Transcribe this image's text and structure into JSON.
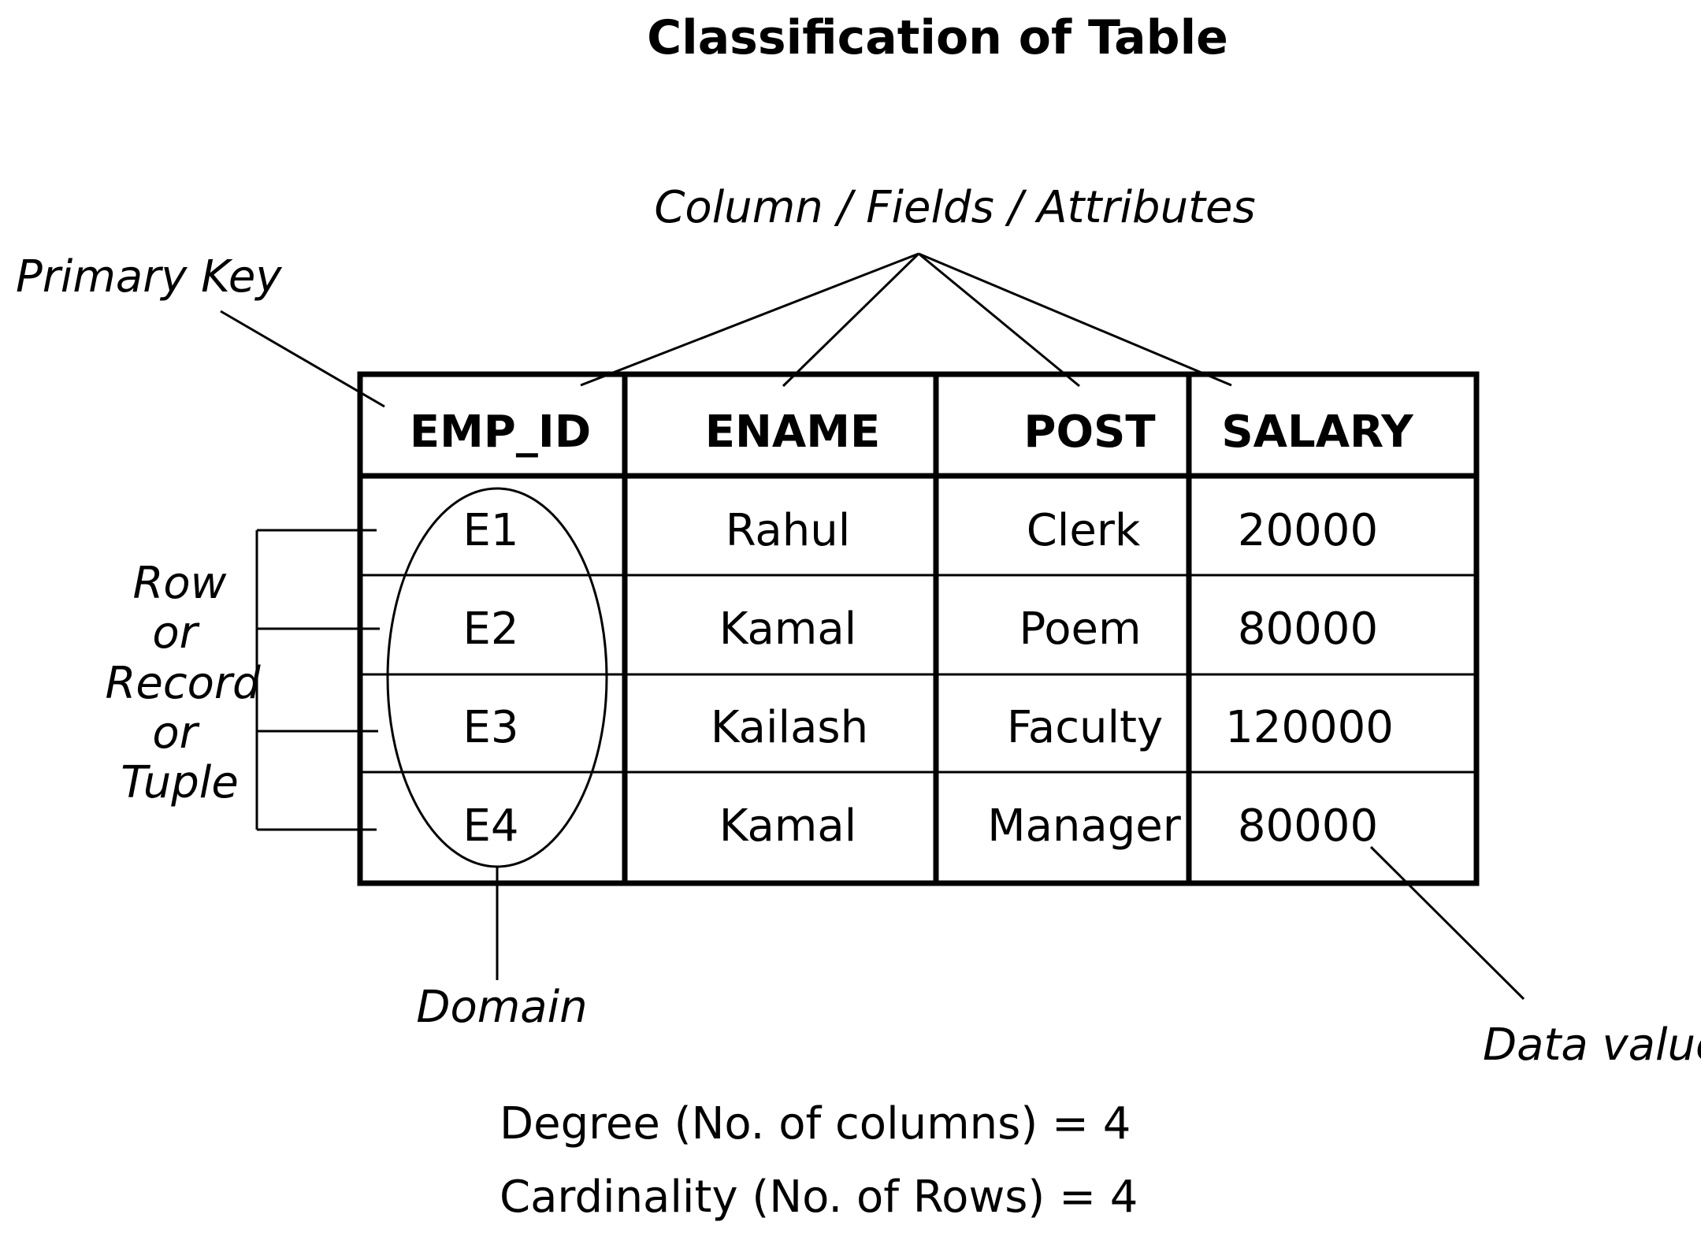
{
  "title": "Classification of Table",
  "labels": {
    "columns": "Column / Fields / Attributes",
    "primary_key": "Primary Key",
    "row": [
      "Row",
      "or",
      "Record",
      "or",
      "Tuple"
    ],
    "domain": "Domain",
    "data_value": "Data value"
  },
  "table": {
    "headers": [
      "EMP_ID",
      "ENAME",
      "POST",
      "SALARY"
    ],
    "rows": [
      [
        "E1",
        "Rahul",
        "Clerk",
        "20000"
      ],
      [
        "E2",
        "Kamal",
        "Poem",
        "80000"
      ],
      [
        "E3",
        "Kailash",
        "Faculty",
        "120000"
      ],
      [
        "E4",
        "Kamal",
        "Manager",
        "80000"
      ]
    ]
  },
  "stats": {
    "degree": "Degree (No. of columns) = 4",
    "cardinality": "Cardinality (No. of Rows) = 4"
  }
}
